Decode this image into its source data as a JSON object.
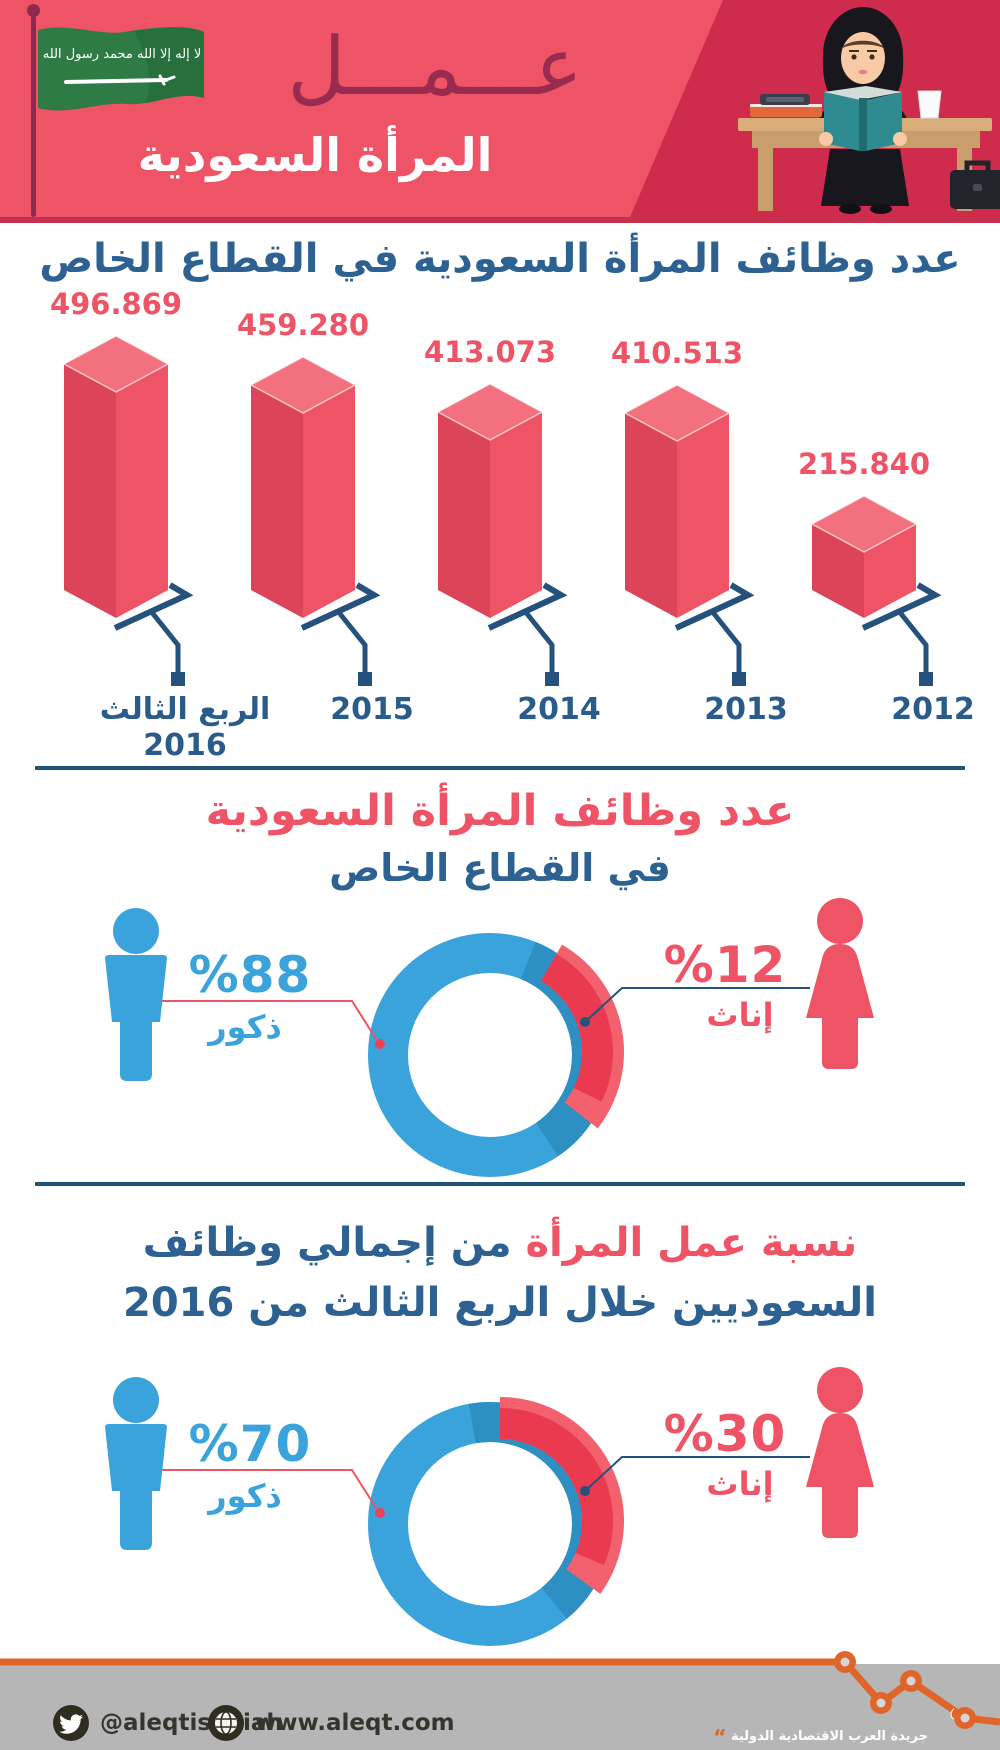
{
  "header": {
    "brand": "عمل",
    "brand_display": "عـــمـــل",
    "title": "المرأة السعودية"
  },
  "sections": {
    "bars": {
      "title": "عدد وظائف المرأة السعودية في القطاع الخاص"
    },
    "donut1": {
      "title": "عدد وظائف المرأة السعودية",
      "subtitle": "في القطاع الخاص",
      "male_pct": "%88",
      "male_label": "ذكور",
      "female_pct": "%12",
      "female_label": "إناث"
    },
    "donut2": {
      "title_highlight": "نسبة عمل المرأة",
      "title_rest": "من إجمالي وظائف",
      "title_line2": "السعوديين خلال الربع الثالث من 2016",
      "male_pct": "%70",
      "male_label": "ذكور",
      "female_pct": "%30",
      "female_label": "إناث"
    }
  },
  "footer": {
    "twitter_handle": "@aleqtisadiah",
    "website": "www.aleqt.com",
    "logo": "الاقتصادية",
    "tagline": "جريدة العرب الاقتصادية الدولية",
    "quote_mark": "“"
  },
  "colors": {
    "header_pink": "#ef5366",
    "header_dark": "#ce2b4d",
    "maroon": "#9a2b50",
    "title_blue": "#2d6191",
    "line_blue": "#24527c",
    "bar_left": "#dc4459",
    "bar_right": "#ee5366",
    "bar_top": "#f3717f",
    "donut_blue": "#3ba3dc",
    "donut_blue_shadow": "#2e8fc2",
    "donut_red_dark": "#e93a50",
    "donut_red_light": "#f2616d",
    "footer_orange": "#e0652b",
    "footer_gray": "#b5b6b5"
  },
  "chart_data": [
    {
      "type": "bar",
      "title": "عدد وظائف المرأة السعودية في القطاع الخاص",
      "categories": [
        "الربع الثالث 2016",
        "2015",
        "2014",
        "2013",
        "2012"
      ],
      "category_lines": [
        [
          "الربع الثالث",
          "2016"
        ],
        [
          "2015"
        ],
        [
          "2014"
        ],
        [
          "2013"
        ],
        [
          "2012"
        ]
      ],
      "values": [
        496869,
        459280,
        413073,
        410513,
        215840
      ],
      "value_labels": [
        "496.869",
        "459.280",
        "413.073",
        "410.513",
        "215.840"
      ],
      "bar_color": "#ee5366",
      "label_color": "#ef5366",
      "style": "isometric-3d-columns",
      "axis": "none"
    },
    {
      "type": "pie",
      "donut": true,
      "title": "عدد وظائف المرأة السعودية في القطاع الخاص",
      "series": [
        {
          "name": "ذكور",
          "value": 88,
          "color": "#3ba3dc"
        },
        {
          "name": "إناث",
          "value": 12,
          "color": "#e93a50"
        }
      ]
    },
    {
      "type": "pie",
      "donut": true,
      "title": "نسبة عمل المرأة من إجمالي وظائف السعوديين خلال الربع الثالث من 2016",
      "series": [
        {
          "name": "ذكور",
          "value": 70,
          "color": "#3ba3dc"
        },
        {
          "name": "إناث",
          "value": 30,
          "color": "#e93a50"
        }
      ]
    }
  ]
}
